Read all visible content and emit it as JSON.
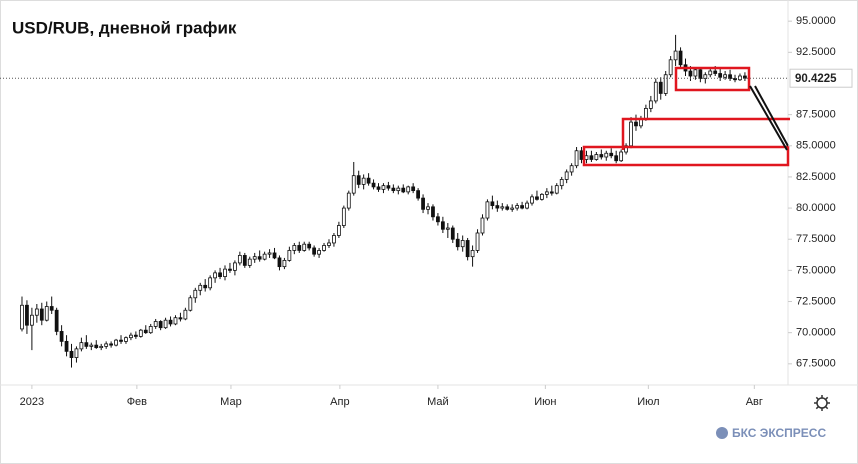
{
  "chart_data": {
    "type": "candlestick",
    "title": "USD/RUB, дневной график",
    "watermark": "БКС ЭКСПРЕСС",
    "ylim": [
      65.8,
      96.7
    ],
    "yticks": [
      {
        "value": 67.5,
        "label": "67.5000"
      },
      {
        "value": 70,
        "label": "70.0000"
      },
      {
        "value": 72.5,
        "label": "72.5000"
      },
      {
        "value": 75,
        "label": "75.0000"
      },
      {
        "value": 77.5,
        "label": "77.5000"
      },
      {
        "value": 80,
        "label": "80.0000"
      },
      {
        "value": 82.5,
        "label": "82.5000"
      },
      {
        "value": 85,
        "label": "85.0000"
      },
      {
        "value": 87.5,
        "label": "87.5000"
      },
      {
        "value": 92.5,
        "label": "92.5000"
      },
      {
        "value": 95,
        "label": "95.0000"
      }
    ],
    "xlim": [
      -4.44,
      154.7
    ],
    "xticks": [
      {
        "value": 2.0,
        "label": "2023"
      },
      {
        "value": 23.2,
        "label": "Фев"
      },
      {
        "value": 42.2,
        "label": "Мар"
      },
      {
        "value": 64.2,
        "label": "Апр"
      },
      {
        "value": 84.0,
        "label": "Май"
      },
      {
        "value": 105.7,
        "label": "Июн"
      },
      {
        "value": 126.5,
        "label": "Июл"
      },
      {
        "value": 147.9,
        "label": "Авг"
      }
    ],
    "up_color": "#ffffff",
    "down_color": "#111111",
    "line_color": "#111111",
    "candles": [
      [
        70.3,
        72.9,
        70.1,
        72.2
      ],
      [
        72.2,
        72.6,
        69.9,
        70.6
      ],
      [
        70.6,
        72.0,
        68.6,
        71.4
      ],
      [
        71.4,
        72.3,
        70.8,
        71.9
      ],
      [
        71.9,
        72.4,
        70.6,
        71.0
      ],
      [
        71.0,
        72.5,
        70.9,
        72.1
      ],
      [
        72.1,
        72.9,
        71.5,
        71.8
      ],
      [
        71.8,
        72.0,
        69.8,
        70.1
      ],
      [
        70.1,
        70.6,
        68.9,
        69.3
      ],
      [
        69.3,
        69.8,
        68.1,
        68.5
      ],
      [
        68.5,
        69.1,
        67.2,
        68.0
      ],
      [
        68.0,
        68.9,
        67.6,
        68.7
      ],
      [
        68.7,
        69.6,
        68.5,
        69.2
      ],
      [
        69.2,
        69.8,
        68.7,
        68.9
      ],
      [
        68.9,
        69.2,
        68.6,
        69.0
      ],
      [
        69.0,
        69.4,
        68.7,
        68.8
      ],
      [
        68.8,
        69.1,
        68.6,
        68.9
      ],
      [
        68.9,
        69.3,
        68.7,
        69.1
      ],
      [
        69.1,
        69.3,
        68.8,
        69.0
      ],
      [
        69.0,
        69.5,
        68.9,
        69.4
      ],
      [
        69.4,
        69.8,
        69.1,
        69.3
      ],
      [
        69.3,
        69.7,
        69.1,
        69.6
      ],
      [
        69.6,
        70.0,
        69.4,
        69.8
      ],
      [
        69.8,
        70.1,
        69.5,
        69.7
      ],
      [
        69.7,
        70.3,
        69.6,
        70.2
      ],
      [
        70.2,
        70.6,
        69.9,
        70.0
      ],
      [
        70.0,
        70.7,
        69.9,
        70.5
      ],
      [
        70.5,
        71.1,
        70.3,
        70.9
      ],
      [
        70.9,
        71.0,
        70.2,
        70.4
      ],
      [
        70.4,
        71.2,
        70.3,
        71.0
      ],
      [
        71.0,
        71.3,
        70.5,
        70.7
      ],
      [
        70.7,
        71.4,
        70.6,
        71.2
      ],
      [
        71.2,
        71.6,
        70.9,
        71.1
      ],
      [
        71.1,
        72.0,
        71.0,
        71.8
      ],
      [
        71.8,
        73.0,
        71.7,
        72.8
      ],
      [
        72.8,
        73.6,
        72.4,
        73.4
      ],
      [
        73.4,
        74.0,
        73.0,
        73.8
      ],
      [
        73.8,
        74.3,
        73.3,
        73.6
      ],
      [
        73.6,
        74.6,
        73.4,
        74.4
      ],
      [
        74.4,
        75.0,
        74.0,
        74.8
      ],
      [
        74.8,
        75.2,
        74.3,
        74.5
      ],
      [
        74.5,
        75.4,
        74.2,
        75.1
      ],
      [
        75.1,
        75.6,
        74.8,
        75.0
      ],
      [
        75.0,
        75.8,
        74.6,
        75.6
      ],
      [
        75.6,
        76.5,
        75.4,
        76.2
      ],
      [
        76.2,
        76.4,
        75.2,
        75.4
      ],
      [
        75.4,
        76.1,
        75.2,
        75.9
      ],
      [
        75.9,
        76.4,
        75.6,
        76.1
      ],
      [
        76.1,
        76.6,
        75.7,
        75.9
      ],
      [
        75.9,
        76.5,
        75.8,
        76.3
      ],
      [
        76.3,
        76.7,
        76.0,
        76.4
      ],
      [
        76.4,
        76.8,
        75.9,
        76.0
      ],
      [
        76.0,
        76.2,
        75.0,
        75.3
      ],
      [
        75.3,
        76.0,
        75.1,
        75.8
      ],
      [
        75.8,
        76.9,
        75.7,
        76.6
      ],
      [
        76.6,
        77.2,
        76.3,
        77.0
      ],
      [
        77.0,
        77.3,
        76.4,
        76.6
      ],
      [
        76.6,
        77.3,
        76.5,
        77.1
      ],
      [
        77.1,
        77.3,
        76.6,
        76.8
      ],
      [
        76.8,
        77.0,
        76.1,
        76.3
      ],
      [
        76.3,
        76.8,
        76.0,
        76.6
      ],
      [
        76.6,
        77.2,
        76.5,
        77.0
      ],
      [
        77.0,
        77.5,
        76.8,
        77.2
      ],
      [
        77.2,
        78.0,
        76.9,
        77.8
      ],
      [
        77.8,
        78.9,
        77.6,
        78.6
      ],
      [
        78.6,
        80.2,
        78.4,
        80.0
      ],
      [
        80.0,
        81.4,
        79.8,
        81.2
      ],
      [
        81.2,
        83.7,
        81.0,
        82.6
      ],
      [
        82.6,
        83.0,
        81.6,
        81.9
      ],
      [
        81.9,
        82.7,
        81.5,
        82.4
      ],
      [
        82.4,
        82.8,
        81.8,
        82.0
      ],
      [
        82.0,
        82.3,
        81.5,
        81.7
      ],
      [
        81.7,
        82.0,
        81.3,
        81.5
      ],
      [
        81.5,
        82.0,
        81.2,
        81.8
      ],
      [
        81.8,
        82.1,
        81.4,
        81.6
      ],
      [
        81.6,
        81.9,
        81.2,
        81.4
      ],
      [
        81.4,
        81.8,
        81.1,
        81.6
      ],
      [
        81.6,
        81.9,
        81.2,
        81.3
      ],
      [
        81.3,
        81.8,
        81.1,
        81.7
      ],
      [
        81.7,
        82.0,
        81.2,
        81.4
      ],
      [
        81.4,
        81.6,
        80.6,
        80.8
      ],
      [
        80.8,
        81.1,
        79.6,
        79.9
      ],
      [
        79.9,
        80.4,
        79.5,
        80.1
      ],
      [
        80.1,
        80.3,
        79.0,
        79.3
      ],
      [
        79.3,
        79.6,
        78.6,
        78.9
      ],
      [
        78.9,
        79.3,
        78.0,
        78.3
      ],
      [
        78.3,
        78.8,
        77.6,
        78.4
      ],
      [
        78.4,
        78.6,
        77.2,
        77.5
      ],
      [
        77.5,
        78.0,
        76.6,
        76.9
      ],
      [
        76.9,
        77.8,
        76.5,
        77.4
      ],
      [
        77.4,
        77.6,
        75.8,
        76.1
      ],
      [
        76.1,
        77.0,
        75.3,
        76.6
      ],
      [
        76.6,
        78.3,
        76.4,
        78.0
      ],
      [
        78.0,
        79.5,
        77.8,
        79.2
      ],
      [
        79.2,
        80.7,
        79.0,
        80.5
      ],
      [
        80.5,
        81.0,
        79.9,
        80.2
      ],
      [
        80.2,
        80.6,
        79.7,
        80.0
      ],
      [
        80.0,
        80.4,
        79.8,
        80.1
      ],
      [
        80.1,
        80.3,
        79.8,
        79.9
      ],
      [
        79.9,
        80.3,
        79.7,
        80.0
      ],
      [
        80.0,
        80.4,
        79.8,
        80.2
      ],
      [
        80.2,
        80.5,
        79.9,
        80.0
      ],
      [
        80.0,
        80.6,
        79.9,
        80.4
      ],
      [
        80.4,
        81.1,
        80.2,
        80.9
      ],
      [
        80.9,
        81.4,
        80.6,
        80.7
      ],
      [
        80.7,
        81.2,
        80.6,
        81.1
      ],
      [
        81.1,
        81.6,
        80.8,
        81.3
      ],
      [
        81.3,
        81.8,
        81.0,
        81.2
      ],
      [
        81.2,
        82.0,
        81.1,
        81.8
      ],
      [
        81.8,
        82.5,
        81.5,
        82.3
      ],
      [
        82.3,
        83.1,
        82.0,
        82.9
      ],
      [
        82.9,
        83.6,
        82.6,
        83.4
      ],
      [
        83.4,
        84.9,
        83.2,
        84.6
      ],
      [
        84.6,
        84.9,
        83.6,
        83.9
      ],
      [
        83.9,
        84.6,
        83.6,
        84.2
      ],
      [
        84.2,
        84.6,
        83.7,
        83.9
      ],
      [
        83.9,
        84.5,
        83.8,
        84.3
      ],
      [
        84.3,
        84.7,
        83.9,
        84.1
      ],
      [
        84.1,
        84.6,
        83.8,
        84.4
      ],
      [
        84.4,
        84.8,
        84.0,
        84.2
      ],
      [
        84.2,
        84.6,
        83.6,
        83.8
      ],
      [
        83.8,
        84.7,
        83.7,
        84.5
      ],
      [
        84.5,
        85.2,
        84.3,
        85.0
      ],
      [
        85.0,
        87.3,
        84.8,
        86.9
      ],
      [
        86.9,
        87.5,
        86.2,
        86.6
      ],
      [
        86.6,
        87.4,
        86.4,
        87.2
      ],
      [
        87.2,
        88.3,
        87.0,
        88.0
      ],
      [
        88.0,
        89.0,
        87.7,
        88.6
      ],
      [
        88.6,
        90.4,
        88.4,
        90.1
      ],
      [
        90.1,
        90.5,
        88.7,
        89.2
      ],
      [
        89.2,
        91.0,
        89.0,
        90.7
      ],
      [
        90.7,
        92.2,
        90.5,
        91.9
      ],
      [
        91.9,
        93.9,
        91.4,
        92.6
      ],
      [
        92.6,
        92.9,
        91.2,
        91.5
      ],
      [
        91.5,
        92.0,
        90.6,
        91.0
      ],
      [
        91.0,
        91.4,
        90.2,
        90.6
      ],
      [
        90.6,
        91.3,
        90.3,
        91.1
      ],
      [
        91.1,
        91.3,
        90.1,
        90.4
      ],
      [
        90.4,
        90.9,
        90.0,
        90.7
      ],
      [
        90.7,
        91.3,
        90.5,
        91.0
      ],
      [
        91.0,
        91.4,
        90.6,
        90.8
      ],
      [
        90.8,
        91.2,
        90.2,
        90.5
      ],
      [
        90.5,
        91.0,
        90.3,
        90.7
      ],
      [
        90.7,
        91.1,
        90.2,
        90.4
      ],
      [
        90.4,
        90.7,
        90.1,
        90.3
      ],
      [
        90.3,
        90.8,
        90.2,
        90.6
      ],
      [
        90.6,
        90.9,
        90.2,
        90.4225
      ]
    ]
  }
}
